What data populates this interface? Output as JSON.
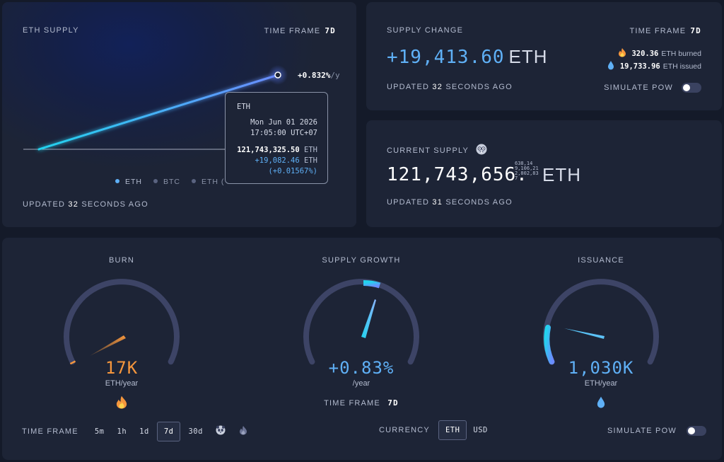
{
  "supply_card": {
    "title": "ETH SUPPLY",
    "time_frame_label": "TIME FRAME",
    "time_frame_value": "7d",
    "rate_value": "+0.832%",
    "rate_unit": "/y",
    "legend": [
      {
        "label": "ETH",
        "color": "#5fb0f6",
        "active": true
      },
      {
        "label": "BTC",
        "color": "#5a6380",
        "active": false
      },
      {
        "label": "ETH (",
        "color": "#5a6380",
        "active": false
      }
    ],
    "legend_hidden_tail": "...)",
    "updated_prefix": "UPDATED",
    "updated_value": "32",
    "updated_suffix": "SECONDS AGO",
    "tooltip": {
      "name": "ETH",
      "date": "Mon Jun 01 2026",
      "time": "17:05:00 UTC+07",
      "value": "121,743,325.50",
      "value_unit": "ETH",
      "delta": "+19,082.46",
      "delta_unit": "ETH",
      "delta_pct": "(+0.01567%)"
    }
  },
  "change_card": {
    "title": "SUPPLY CHANGE",
    "time_frame_label": "TIME FRAME",
    "time_frame_value": "7d",
    "value": "+19,413.60",
    "unit": "ETH",
    "burned_value": "320.36",
    "burned_label": "ETH burned",
    "issued_value": "19,733.96",
    "issued_label": "ETH issued",
    "updated_prefix": "UPDATED",
    "updated_value": "32",
    "updated_suffix": "SECONDS AGO",
    "simulate_label": "SIMULATE PoW",
    "simulate_on": false
  },
  "current_card": {
    "title": "CURRENT SUPPLY",
    "value_main": "121,743,656.",
    "fraction_lines": [
      "638,14",
      "9,106,21",
      "2,802,83",
      "7"
    ],
    "unit": "ETH",
    "updated_prefix": "UPDATED",
    "updated_value": "31",
    "updated_suffix": "SECONDS AGO"
  },
  "gauges": {
    "burn": {
      "title": "BURN",
      "value": "17K",
      "unit": "ETH/year",
      "color": "#f5963d"
    },
    "growth": {
      "title": "SUPPLY GROWTH",
      "value": "+0.83%",
      "unit": "/year",
      "color": "#5fb0f6",
      "time_frame_label": "TIME FRAME",
      "time_frame_value": "7d"
    },
    "issuance": {
      "title": "ISSUANCE",
      "value": "1,030K",
      "unit": "ETH/year",
      "color": "#5fb0f6"
    }
  },
  "bottom_bar": {
    "time_frame_label": "TIME FRAME",
    "time_frames": [
      "5m",
      "1h",
      "1d",
      "7d",
      "30d"
    ],
    "selected_time_frame": "7d",
    "currency_label": "CURRENCY",
    "currencies": [
      "ETH",
      "USD"
    ],
    "selected_currency": "ETH",
    "simulate_label": "SIMULATE PoW",
    "simulate_on": false
  }
}
